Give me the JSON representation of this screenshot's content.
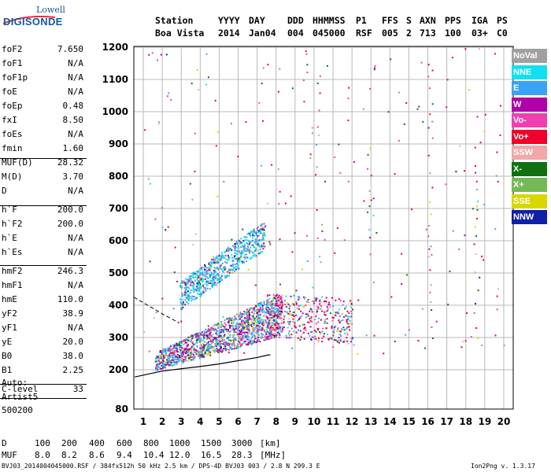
{
  "logo": {
    "top": "Lowell",
    "bottom": "DIGISONDE"
  },
  "header": {
    "labels": [
      "Station",
      "YYYY",
      "DAY",
      "DDD",
      "HHMMSS",
      "P1",
      "FFS",
      "S",
      "AXN",
      "PPS",
      "IGA",
      "PS"
    ],
    "values": [
      "Boa Vista",
      "2014",
      "Jan04",
      "004",
      "045000",
      "RSF",
      "005",
      "2",
      "713",
      "100",
      "03+",
      "C0"
    ]
  },
  "params": [
    {
      "name": "foF2",
      "value": "7.650"
    },
    {
      "name": "foF1",
      "value": "N/A"
    },
    {
      "name": "foF1p",
      "value": "N/A"
    },
    {
      "name": "foE",
      "value": "N/A"
    },
    {
      "name": "foEp",
      "value": "0.48"
    },
    {
      "name": "fxI",
      "value": "8.50"
    },
    {
      "name": "foEs",
      "value": "N/A"
    },
    {
      "name": "fmin",
      "value": "1.60"
    },
    {
      "name": "MUF(D)",
      "value": "28.32"
    },
    {
      "name": "M(D)",
      "value": "3.70"
    },
    {
      "name": "D",
      "value": "N/A"
    },
    {
      "name": "h`F",
      "value": "200.0"
    },
    {
      "name": "h`F2",
      "value": "200.0"
    },
    {
      "name": "h`E",
      "value": "N/A"
    },
    {
      "name": "h`Es",
      "value": "N/A"
    },
    {
      "name": "hmF2",
      "value": "246.3"
    },
    {
      "name": "hmF1",
      "value": "N/A"
    },
    {
      "name": "hmE",
      "value": "110.0"
    },
    {
      "name": "yF2",
      "value": "38.9"
    },
    {
      "name": "yF1",
      "value": "N/A"
    },
    {
      "name": "yE",
      "value": "20.0"
    },
    {
      "name": "B0",
      "value": "38.0"
    },
    {
      "name": "B1",
      "value": "2.25"
    },
    {
      "name": "C-level",
      "value": "33"
    }
  ],
  "auto": {
    "label": "Auto:",
    "artist": "Artist5",
    "version": "500200"
  },
  "legend": [
    {
      "label": "NoVal",
      "color": "#a0a0a0"
    },
    {
      "label": "NNE",
      "color": "#12e0f0"
    },
    {
      "label": "E",
      "color": "#3aa2f4"
    },
    {
      "label": "W",
      "color": "#b000a8"
    },
    {
      "label": "Vo-",
      "color": "#f040b0"
    },
    {
      "label": "Vo+",
      "color": "#f0002a"
    },
    {
      "label": "SSW",
      "color": "#f0a8a8"
    },
    {
      "label": "X-",
      "color": "#107010"
    },
    {
      "label": "X+",
      "color": "#74b858"
    },
    {
      "label": "SSE",
      "color": "#d8d800"
    },
    {
      "label": "NNW",
      "color": "#1020a8"
    }
  ],
  "chart_data": {
    "type": "scatter",
    "x_ticks": [
      "1",
      "2",
      "3",
      "4",
      "5",
      "6",
      "7",
      "8",
      "9",
      "10",
      "11",
      "12",
      "13",
      "14",
      "15",
      "16",
      "17",
      "18",
      "19",
      "20"
    ],
    "y_ticks": [
      "80",
      "200",
      "300",
      "400",
      "500",
      "600",
      "700",
      "800",
      "900",
      "1000",
      "1100",
      "1200"
    ],
    "xlim": [
      0.5,
      20.5
    ],
    "ylim": [
      80,
      1200
    ],
    "grid": true,
    "legend_placement": "right",
    "traces": [
      {
        "series": "F2 trace",
        "x": [
          1.6,
          8.3
        ],
        "y": [
          200,
          440
        ]
      },
      {
        "series": "F2 2-hop trace",
        "x": [
          2.9,
          7.4
        ],
        "y": [
          430,
          700
        ]
      },
      {
        "series": "spread",
        "x": [
          7.5,
          12.0
        ],
        "y": [
          300,
          440
        ]
      }
    ],
    "profile_curve": {
      "x": [
        0.55,
        2,
        3,
        4,
        5,
        6,
        7,
        7.6,
        7.7
      ],
      "y": [
        178,
        196,
        203,
        210,
        218,
        228,
        238,
        246,
        246
      ]
    },
    "dashed_curve": {
      "x": [
        0.5,
        2.1,
        2.9
      ],
      "y": [
        425,
        370,
        345
      ]
    }
  },
  "bottom": {
    "d_label": "D",
    "d_values": [
      "100",
      "200",
      "400",
      "600",
      "800",
      "1000",
      "1500",
      "3000"
    ],
    "d_unit": "[km]",
    "muf_label": "MUF",
    "muf_values": [
      "8.0",
      "8.2",
      "8.6",
      "9.4",
      "10.4",
      "12.0",
      "16.5",
      "28.3"
    ],
    "muf_unit": "[MHz]"
  },
  "footer": {
    "left": "BVJ03_2014004045000.RSF / 384fx512h 50 kHz 2.5 km / DPS-4D BVJ03 003 / 2.8 N 299.3 E",
    "right": "Ion2Png v. 1.3.17"
  }
}
